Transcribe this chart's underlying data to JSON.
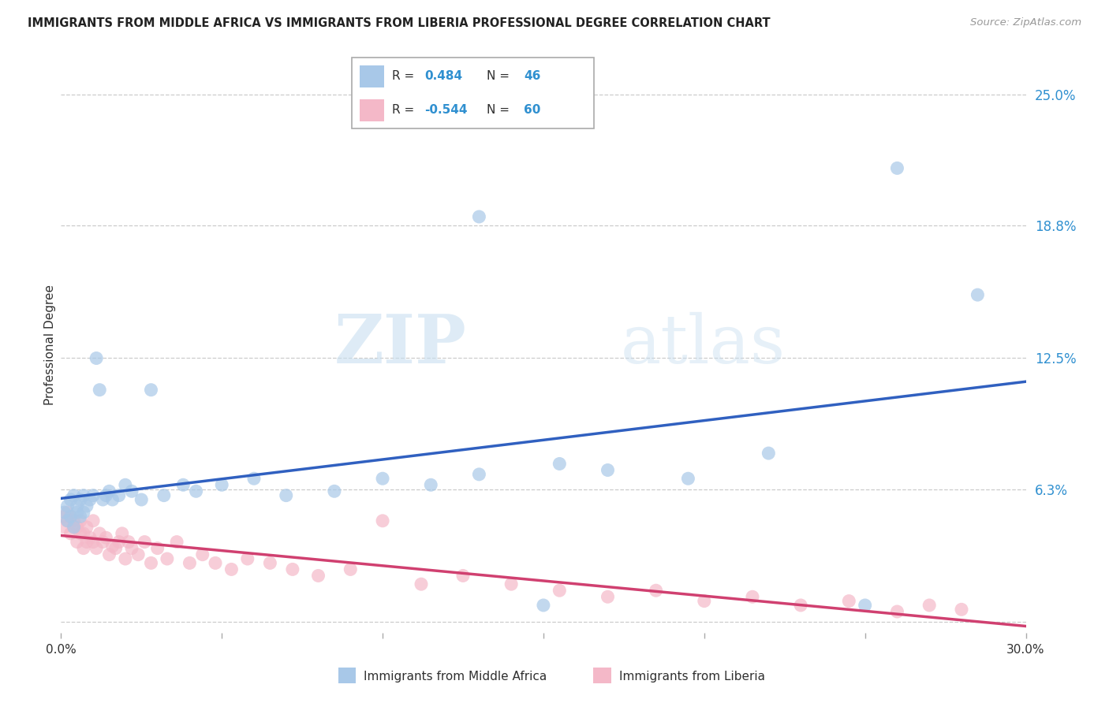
{
  "title": "IMMIGRANTS FROM MIDDLE AFRICA VS IMMIGRANTS FROM LIBERIA PROFESSIONAL DEGREE CORRELATION CHART",
  "source": "Source: ZipAtlas.com",
  "ylabel": "Professional Degree",
  "y_ticks": [
    0.0,
    0.063,
    0.125,
    0.188,
    0.25
  ],
  "y_tick_labels": [
    "",
    "6.3%",
    "12.5%",
    "18.8%",
    "25.0%"
  ],
  "xlim": [
    0.0,
    0.3
  ],
  "ylim": [
    -0.005,
    0.268
  ],
  "blue_R": 0.484,
  "blue_N": 46,
  "pink_R": -0.544,
  "pink_N": 60,
  "blue_color": "#a8c8e8",
  "pink_color": "#f4b8c8",
  "blue_line_color": "#3060c0",
  "pink_line_color": "#d04070",
  "text_color_dark": "#303030",
  "text_color_blue": "#3090d0",
  "legend_label_blue": "Immigrants from Middle Africa",
  "legend_label_pink": "Immigrants from Liberia",
  "watermark_zip": "ZIP",
  "watermark_atlas": "atlas",
  "blue_scatter_x": [
    0.001,
    0.002,
    0.002,
    0.003,
    0.003,
    0.004,
    0.004,
    0.005,
    0.005,
    0.006,
    0.006,
    0.007,
    0.007,
    0.008,
    0.009,
    0.01,
    0.011,
    0.012,
    0.013,
    0.014,
    0.015,
    0.016,
    0.018,
    0.02,
    0.022,
    0.025,
    0.028,
    0.032,
    0.038,
    0.042,
    0.05,
    0.06,
    0.07,
    0.085,
    0.1,
    0.115,
    0.13,
    0.15,
    0.17,
    0.195,
    0.13,
    0.155,
    0.22,
    0.25,
    0.26,
    0.285
  ],
  "blue_scatter_y": [
    0.052,
    0.048,
    0.055,
    0.05,
    0.058,
    0.045,
    0.06,
    0.052,
    0.055,
    0.05,
    0.058,
    0.052,
    0.06,
    0.055,
    0.058,
    0.06,
    0.125,
    0.11,
    0.058,
    0.06,
    0.062,
    0.058,
    0.06,
    0.065,
    0.062,
    0.058,
    0.11,
    0.06,
    0.065,
    0.062,
    0.065,
    0.068,
    0.06,
    0.062,
    0.068,
    0.065,
    0.07,
    0.008,
    0.072,
    0.068,
    0.192,
    0.075,
    0.08,
    0.008,
    0.215,
    0.155
  ],
  "pink_scatter_x": [
    0.001,
    0.001,
    0.002,
    0.002,
    0.003,
    0.003,
    0.004,
    0.004,
    0.005,
    0.005,
    0.006,
    0.006,
    0.007,
    0.007,
    0.008,
    0.008,
    0.009,
    0.01,
    0.01,
    0.011,
    0.012,
    0.013,
    0.014,
    0.015,
    0.016,
    0.017,
    0.018,
    0.019,
    0.02,
    0.021,
    0.022,
    0.024,
    0.026,
    0.028,
    0.03,
    0.033,
    0.036,
    0.04,
    0.044,
    0.048,
    0.053,
    0.058,
    0.065,
    0.072,
    0.08,
    0.09,
    0.1,
    0.112,
    0.125,
    0.14,
    0.155,
    0.17,
    0.185,
    0.2,
    0.215,
    0.23,
    0.245,
    0.26,
    0.27,
    0.28
  ],
  "pink_scatter_y": [
    0.05,
    0.045,
    0.048,
    0.052,
    0.042,
    0.05,
    0.045,
    0.048,
    0.038,
    0.045,
    0.042,
    0.048,
    0.035,
    0.042,
    0.038,
    0.045,
    0.04,
    0.038,
    0.048,
    0.035,
    0.042,
    0.038,
    0.04,
    0.032,
    0.036,
    0.035,
    0.038,
    0.042,
    0.03,
    0.038,
    0.035,
    0.032,
    0.038,
    0.028,
    0.035,
    0.03,
    0.038,
    0.028,
    0.032,
    0.028,
    0.025,
    0.03,
    0.028,
    0.025,
    0.022,
    0.025,
    0.048,
    0.018,
    0.022,
    0.018,
    0.015,
    0.012,
    0.015,
    0.01,
    0.012,
    0.008,
    0.01,
    0.005,
    0.008,
    0.006
  ]
}
